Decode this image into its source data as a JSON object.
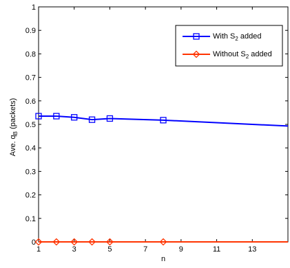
{
  "chart_data": {
    "type": "line",
    "title": "",
    "xlabel": "n",
    "ylabel": "Ave. q",
    "ylabel_sub": "B",
    "ylabel_suffix": " (packets)",
    "xlim": [
      1,
      15
    ],
    "ylim": [
      0,
      1
    ],
    "xticks": [
      1,
      3,
      5,
      7,
      9,
      11,
      13
    ],
    "yticks": [
      0,
      0.1,
      0.2,
      0.3,
      0.4,
      0.5,
      0.6,
      0.7,
      0.8,
      0.9,
      1
    ],
    "ytick_labels": [
      "0",
      "0.1",
      "0.2",
      "0.3",
      "0.4",
      "0.5",
      "0.6",
      "0.7",
      "0.8",
      "0.9",
      "1"
    ],
    "grid": false,
    "legend_position": "top-right",
    "series": [
      {
        "name": "With S",
        "name_sub": "2",
        "name_suffix": " added",
        "color": "#0000ff",
        "marker": "square",
        "x": [
          1,
          2,
          3,
          4,
          5,
          8,
          15
        ],
        "y": [
          0.535,
          0.535,
          0.53,
          0.52,
          0.525,
          0.518,
          0.493
        ],
        "marker_indices": [
          0,
          1,
          2,
          3,
          4,
          5
        ]
      },
      {
        "name": "Without S",
        "name_sub": "2",
        "name_suffix": " added",
        "color": "#ff3300",
        "marker": "diamond",
        "x": [
          1,
          2,
          3,
          4,
          5,
          8,
          15
        ],
        "y": [
          0,
          0,
          0,
          0,
          0,
          0,
          0
        ],
        "marker_indices": [
          0,
          1,
          2,
          3,
          4,
          5
        ]
      }
    ]
  }
}
